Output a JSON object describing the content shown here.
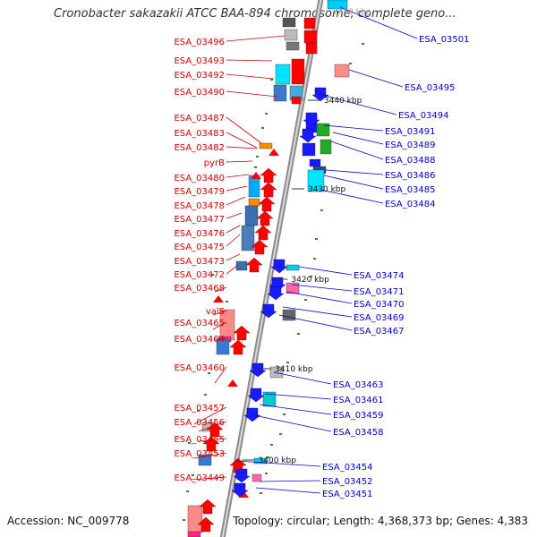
{
  "title": "Cronobacter sakazakii ATCC BAA-894 chromosome, complete geno...",
  "footer": {
    "accession": "Accession: NC_009778",
    "topology": "Topology: circular; Length: 4,368,373 bp; Genes: 4,383"
  },
  "colors": {
    "left_label": "#cc0000",
    "right_label": "#0000cc",
    "backbone": "#9a9a9a",
    "forward_gene": "#ff0000",
    "reverse_gene": "#1a1aff",
    "tick": "#2e8b2e"
  },
  "scale_ticks": [
    "3440 kbp",
    "3430 kbp",
    "3420 kbp",
    "3410 kbp",
    "3400 kbp"
  ],
  "left_labels": [
    "ESA_03496",
    "ESA_03493",
    "ESA_03492",
    "ESA_03490",
    "ESA_03487",
    "ESA_03483",
    "ESA_03482",
    "pyrB",
    "ESA_03480",
    "ESA_03479",
    "ESA_03478",
    "ESA_03477",
    "ESA_03476",
    "ESA_03475",
    "ESA_03473",
    "ESA_03472",
    "ESA_03468",
    "valS",
    "ESA_03465",
    "ESA_03464",
    "ESA_03460",
    "ESA_03457",
    "ESA_03456",
    "ESA_03455",
    "ESA_03453",
    "ESA_03449"
  ],
  "right_labels": [
    "ESA_03501",
    "ESA_03495",
    "ESA_03494",
    "ESA_03491",
    "ESA_03489",
    "ESA_03488",
    "ESA_03486",
    "ESA_03485",
    "ESA_03484",
    "ESA_03474",
    "ESA_03471",
    "ESA_03470",
    "ESA_03469",
    "ESA_03467",
    "ESA_03463",
    "ESA_03461",
    "ESA_03459",
    "ESA_03458",
    "ESA_03454",
    "ESA_03452",
    "ESA_03451"
  ]
}
